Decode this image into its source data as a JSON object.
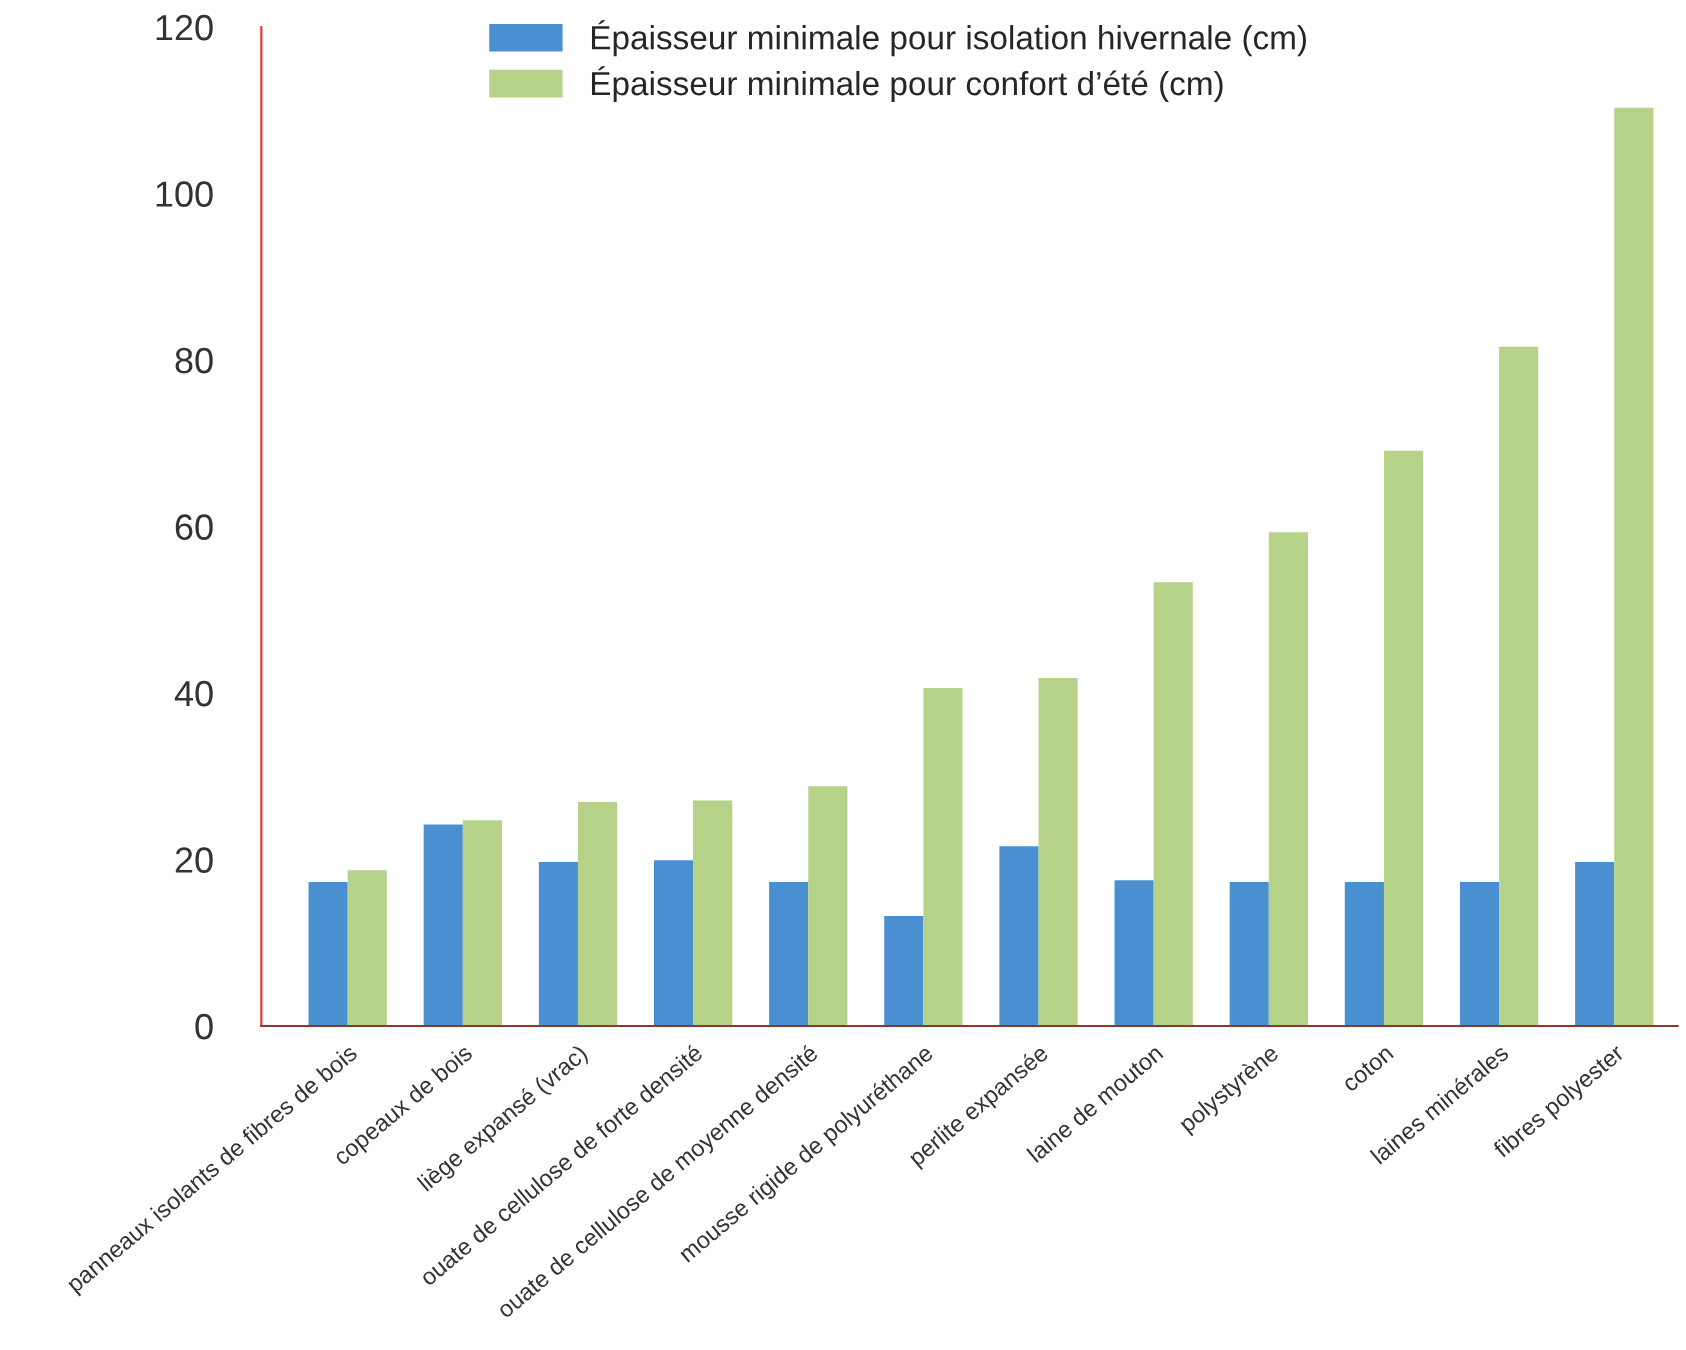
{
  "chart_data": {
    "type": "bar",
    "categories": [
      "panneaux isolants de fibres de bois",
      "copeaux de bois",
      "liège expansé (vrac)",
      "ouate de cellulose de forte densité",
      "ouate de cellulose de moyenne densité",
      "mousse rigide de polyuréthane",
      "perlite expansée",
      "laine de mouton",
      "polystyrène",
      "coton",
      "laines minérales",
      "fibres polyester"
    ],
    "series": [
      {
        "name": "Épaisseur minimale pour isolation hivernale (cm)",
        "color": "#4a8fcf",
        "values": [
          17.3,
          24.2,
          19.7,
          19.9,
          17.3,
          13.2,
          21.6,
          17.5,
          17.3,
          17.3,
          17.3,
          19.7
        ]
      },
      {
        "name": "Épaisseur minimale pour confort d’été (cm)",
        "color": "#b6d188",
        "values": [
          18.7,
          24.7,
          26.9,
          27.1,
          28.8,
          40.6,
          41.8,
          53.3,
          59.3,
          69.1,
          81.6,
          110.3
        ]
      }
    ],
    "ylim": [
      0,
      120
    ],
    "yticks": [
      0,
      20,
      40,
      60,
      80,
      100,
      120
    ],
    "grid": false,
    "legend": "top"
  }
}
